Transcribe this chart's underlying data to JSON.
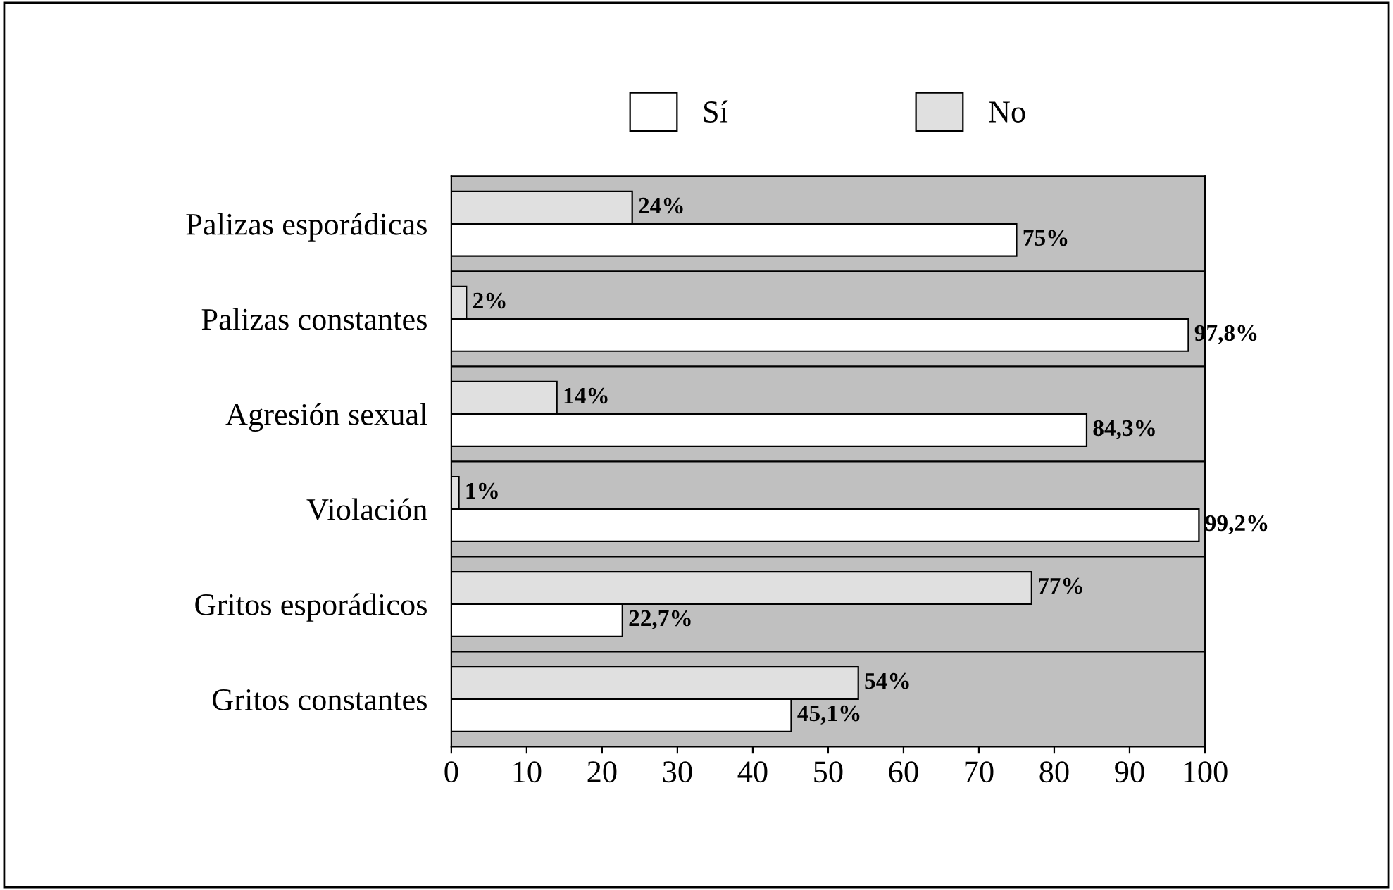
{
  "chart_data": {
    "type": "bar",
    "orientation": "horizontal",
    "categories": [
      "Palizas esporádicas",
      "Palizas constantes",
      "Agresión sexual",
      "Violación",
      "Gritos esporádicos",
      "Gritos constantes"
    ],
    "series": [
      {
        "name": "Sí",
        "color": "#ffffff",
        "values": [
          75,
          97.8,
          84.3,
          99.2,
          22.7,
          45.1
        ],
        "value_labels": [
          "75%",
          "97,8%",
          "84,3%",
          "99,2%",
          "22,7%",
          "45,1%"
        ]
      },
      {
        "name": "No",
        "color": "#e0e0e0",
        "values": [
          24,
          2,
          14,
          1,
          77,
          54
        ],
        "value_labels": [
          "24%",
          "2%",
          "14%",
          "1%",
          "77%",
          "54%"
        ]
      }
    ],
    "xlim": [
      0,
      100
    ],
    "xticks": [
      0,
      10,
      20,
      30,
      40,
      50,
      60,
      70,
      80,
      90,
      100
    ],
    "grid": "y",
    "legend": "top"
  }
}
